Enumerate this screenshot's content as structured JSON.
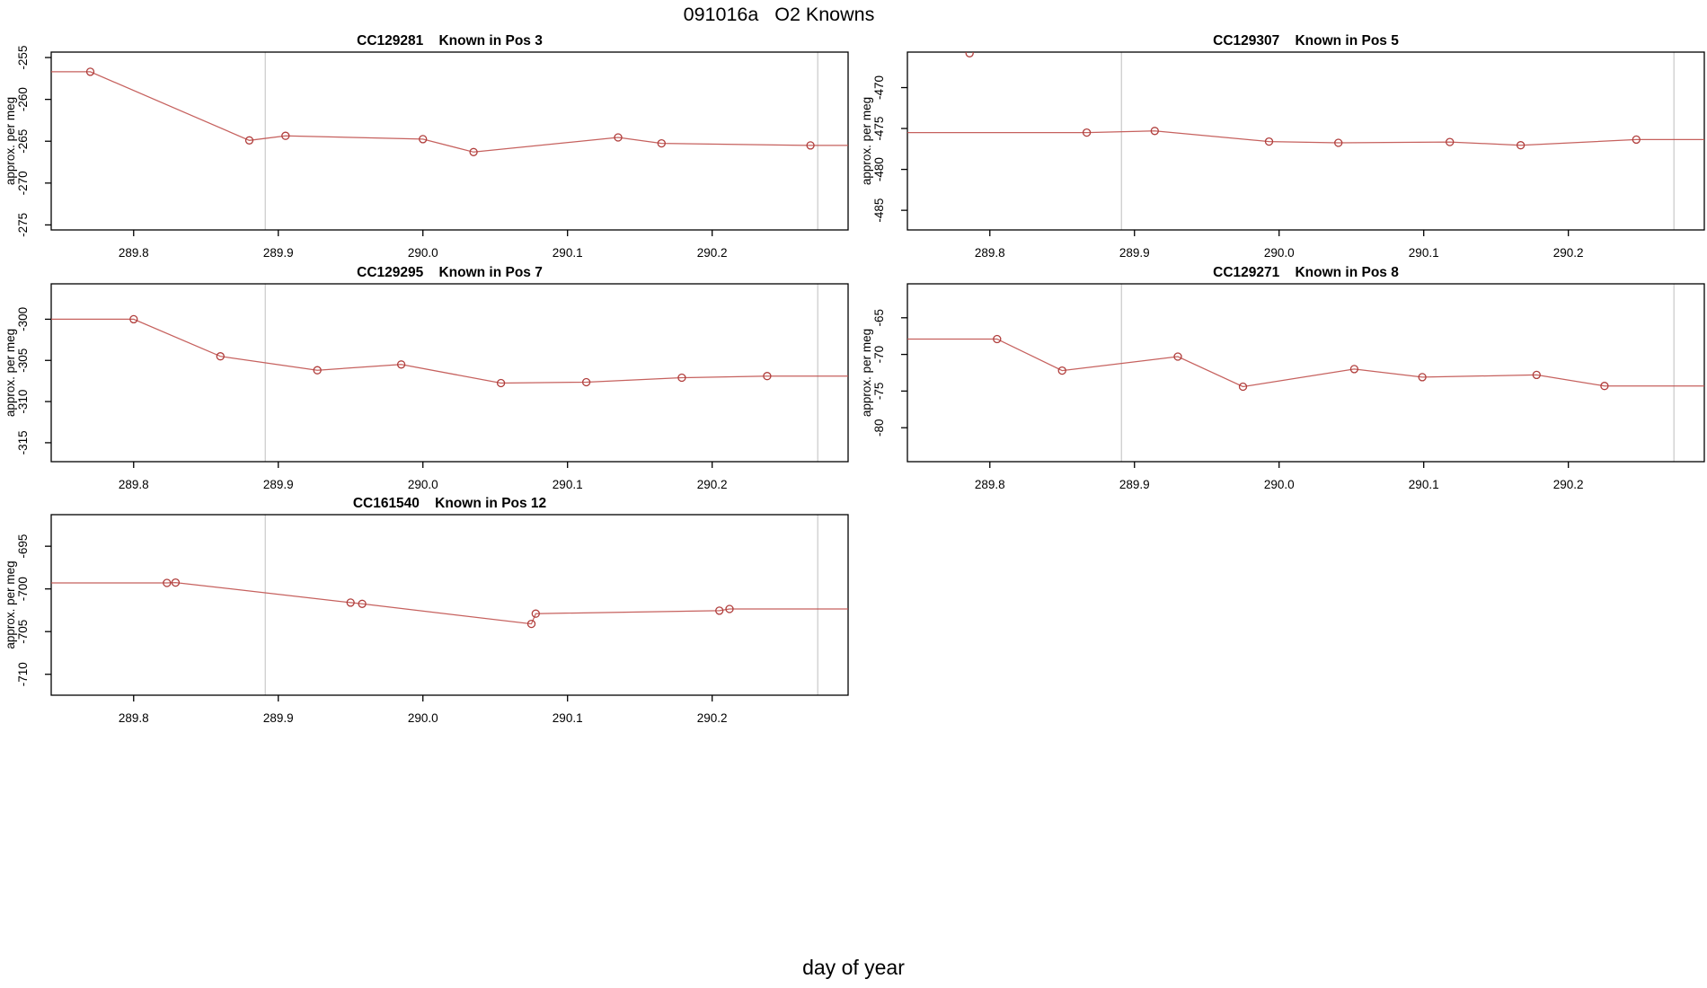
{
  "page": {
    "title": "091016a   O2 Knowns",
    "xlabel": "day of year"
  },
  "colors": {
    "line": "#c0504d",
    "marker": "#b03e3c",
    "grid": "#c9c9c9",
    "axis": "#000000",
    "text": "#000000"
  },
  "axis": {
    "xlim": [
      289.743,
      290.294
    ],
    "xticks": [
      {
        "v": 289.8,
        "label": "289.8"
      },
      {
        "v": 289.9,
        "label": "289.9"
      },
      {
        "v": 290.0,
        "label": "290.0"
      },
      {
        "v": 290.1,
        "label": "290.1"
      },
      {
        "v": 290.2,
        "label": "290.2"
      }
    ],
    "grid_x": [
      289.891,
      290.273
    ]
  },
  "chart_data": [
    {
      "type": "line",
      "id": "CC129281",
      "title": "CC129281    Known in Pos 3",
      "ylabel": "approx. per meg",
      "row": 0,
      "col": "left",
      "ylim": [
        -275.6,
        -254.35
      ],
      "yticks": [
        -255,
        -260,
        -265,
        -270,
        -275
      ],
      "x": [
        289.77,
        289.88,
        289.905,
        290.0,
        290.035,
        290.135,
        290.165,
        290.268
      ],
      "y": [
        -256.7,
        -264.9,
        -264.35,
        -264.75,
        -266.3,
        -264.55,
        -265.25,
        -265.5
      ],
      "extend_left": true,
      "extend_right": true,
      "outlier": null
    },
    {
      "type": "line",
      "id": "CC129307",
      "title": "CC129307    Known in Pos 5",
      "ylabel": "approx. per meg",
      "row": 0,
      "col": "right",
      "ylim": [
        -487.4,
        -465.66
      ],
      "yticks": [
        -470,
        -475,
        -480,
        -485
      ],
      "x": [
        289.867,
        289.914,
        289.993,
        290.041,
        290.118,
        290.167,
        290.247
      ],
      "y": [
        -475.5,
        -475.3,
        -476.6,
        -476.75,
        -476.65,
        -477.05,
        -476.35
      ],
      "extend_left": true,
      "extend_right": true,
      "outlier": {
        "x": 289.786,
        "y": -465.8
      }
    },
    {
      "type": "line",
      "id": "CC129295",
      "title": "CC129295    Known in Pos 7",
      "ylabel": "approx. per meg",
      "row": 1,
      "col": "left",
      "ylim": [
        -317.3,
        -295.7
      ],
      "yticks": [
        -300,
        -305,
        -310,
        -315
      ],
      "x": [
        289.8,
        289.86,
        289.927,
        289.985,
        290.054,
        290.113,
        290.179,
        290.238
      ],
      "y": [
        -300.0,
        -304.5,
        -306.2,
        -305.5,
        -307.75,
        -307.65,
        -307.1,
        -306.9
      ],
      "extend_left": true,
      "extend_right": true,
      "outlier": null
    },
    {
      "type": "line",
      "id": "CC129271",
      "title": "CC129271    Known in Pos 8",
      "ylabel": "approx. per meg",
      "row": 1,
      "col": "right",
      "ylim": [
        -84.63,
        -60.37
      ],
      "yticks": [
        -65,
        -70,
        -75,
        -80
      ],
      "x": [
        289.805,
        289.85,
        289.93,
        289.975,
        290.052,
        290.099,
        290.178,
        290.225
      ],
      "y": [
        -67.9,
        -72.2,
        -70.3,
        -74.4,
        -72.0,
        -73.1,
        -72.8,
        -74.3
      ],
      "extend_left": true,
      "extend_right": true,
      "outlier": null
    },
    {
      "type": "line",
      "id": "CC161540",
      "title": "CC161540    Known in Pos 12",
      "ylabel": "approx. per meg",
      "row": 2,
      "col": "left",
      "ylim": [
        -712.45,
        -691.3
      ],
      "yticks": [
        -695,
        -700,
        -705,
        -710
      ],
      "x": [
        289.823,
        289.829,
        289.95,
        289.958,
        290.075,
        290.078,
        290.205,
        290.212
      ],
      "y": [
        -699.3,
        -699.25,
        -701.6,
        -701.75,
        -704.1,
        -702.9,
        -702.55,
        -702.35
      ],
      "extend_left": true,
      "extend_right": true,
      "outlier": null
    }
  ]
}
